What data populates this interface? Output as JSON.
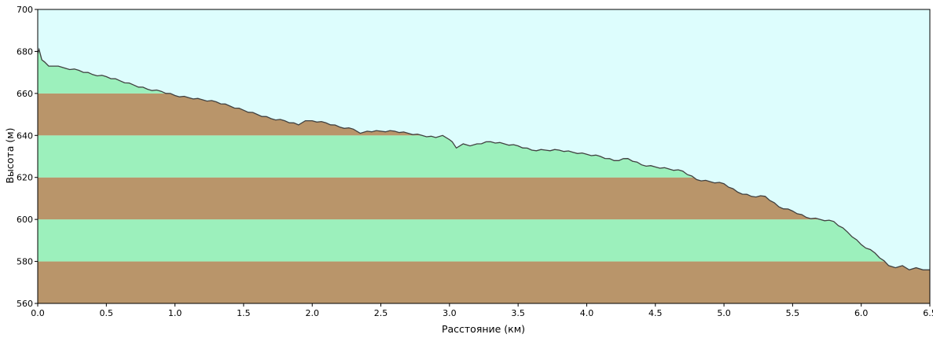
{
  "chart_data": {
    "type": "area",
    "xlabel": "Расстояние  (км)",
    "ylabel": "Высота (м)",
    "xlim": [
      0,
      6.5
    ],
    "ylim": [
      560,
      700
    ],
    "x_ticks": [
      "0.0",
      "0.5",
      "1.0",
      "1.5",
      "2.0",
      "2.5",
      "3.0",
      "3.5",
      "4.0",
      "4.5",
      "5.0",
      "5.5",
      "6.0",
      "6.5"
    ],
    "y_ticks": [
      "560",
      "580",
      "600",
      "620",
      "640",
      "660",
      "680",
      "700"
    ],
    "band_step": 20,
    "colors": {
      "sky": "#ddfdfd",
      "band_green": "#9cf0bc",
      "band_brown": "#b9956a",
      "line": "#404040",
      "frame": "#000000"
    },
    "series": [
      {
        "x": [
          0.0,
          0.01,
          0.03,
          0.05,
          0.08,
          0.1,
          0.15,
          0.2,
          0.3,
          0.4,
          0.5,
          0.6,
          0.7,
          0.8,
          0.9,
          1.0,
          1.1,
          1.2,
          1.3,
          1.4,
          1.5,
          1.6,
          1.7,
          1.8,
          1.9,
          1.95,
          2.0,
          2.1,
          2.2,
          2.3,
          2.35,
          2.4,
          2.5,
          2.6,
          2.7,
          2.8,
          2.9,
          2.95,
          3.0,
          3.02,
          3.05,
          3.1,
          3.15,
          3.2,
          3.3,
          3.4,
          3.5,
          3.6,
          3.7,
          3.8,
          3.9,
          4.0,
          4.1,
          4.2,
          4.3,
          4.4,
          4.5,
          4.6,
          4.7,
          4.8,
          4.9,
          5.0,
          5.1,
          5.2,
          5.3,
          5.4,
          5.5,
          5.6,
          5.7,
          5.8,
          5.9,
          6.0,
          6.1,
          6.2,
          6.25,
          6.3,
          6.35,
          6.4,
          6.45,
          6.5
        ],
        "y": [
          679,
          681,
          676,
          675,
          673,
          673,
          673,
          672,
          671,
          669,
          668,
          666,
          664,
          662,
          661,
          659,
          658,
          657,
          656,
          654,
          652,
          650,
          648,
          647,
          645,
          647,
          647,
          646,
          644,
          643,
          641,
          642,
          642,
          642,
          641,
          640,
          639,
          640,
          638,
          637,
          634,
          636,
          635,
          636,
          637,
          636,
          635,
          633,
          633,
          633,
          632,
          631,
          630,
          628,
          629,
          626,
          625,
          624,
          623,
          619,
          618,
          617,
          613,
          611,
          611,
          606,
          604,
          601,
          600,
          599,
          594,
          588,
          584,
          578,
          577,
          578,
          576,
          577,
          576,
          576
        ]
      }
    ]
  }
}
